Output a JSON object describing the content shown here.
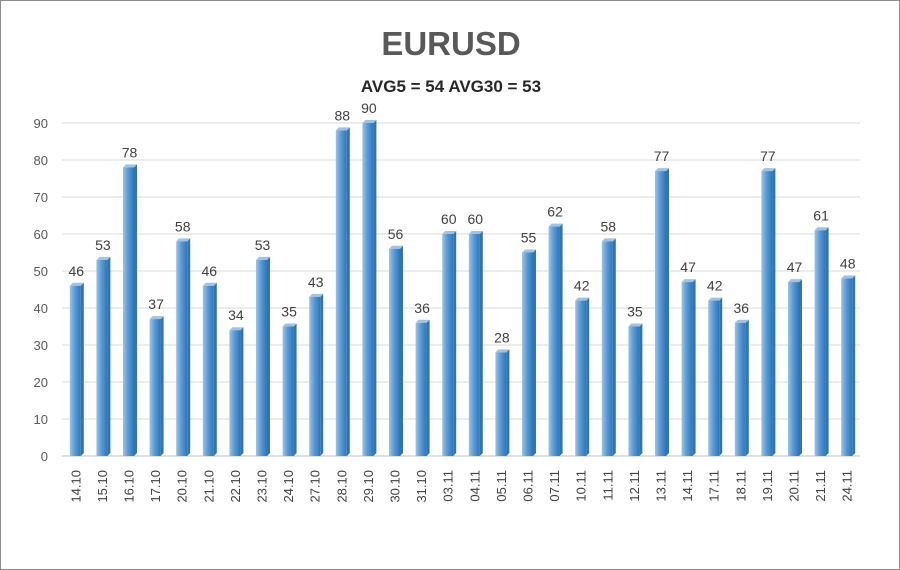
{
  "chart_data": {
    "type": "bar",
    "title": "EURUSD",
    "subtitle": "AVG5 = 54 AVG30 = 53",
    "categories": [
      "14.10",
      "15.10",
      "16.10",
      "17.10",
      "20.10",
      "21.10",
      "22.10",
      "23.10",
      "24.10",
      "27.10",
      "28.10",
      "29.10",
      "30.10",
      "31.10",
      "03.11",
      "04.11",
      "05.11",
      "06.11",
      "07.11",
      "10.11",
      "11.11",
      "12.11",
      "13.11",
      "14.11",
      "17.11",
      "18.11",
      "19.11",
      "20.11",
      "21.11",
      "24.11"
    ],
    "values": [
      46,
      53,
      78,
      37,
      58,
      46,
      34,
      53,
      35,
      43,
      88,
      90,
      56,
      36,
      60,
      60,
      28,
      55,
      62,
      42,
      58,
      35,
      77,
      47,
      42,
      36,
      77,
      47,
      61,
      48
    ],
    "ylim": [
      0,
      90
    ],
    "yticks": [
      0,
      10,
      20,
      30,
      40,
      50,
      60,
      70,
      80,
      90
    ],
    "grid": true,
    "legend": "none",
    "colors": {
      "bar": "#5b9bd5",
      "bar_light": "#9dc3e6",
      "bar_dark": "#2e75b6",
      "grid": "#d9d9d9"
    }
  }
}
